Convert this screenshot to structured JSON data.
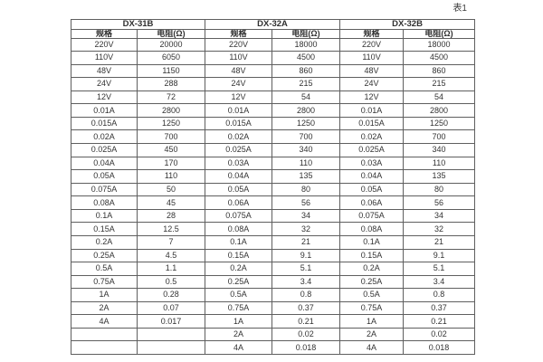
{
  "table_label": "表1",
  "table": {
    "groups": [
      {
        "title": "DX-31B",
        "spec_header": "规格",
        "resistance_header": "电阻(Ω)"
      },
      {
        "title": "DX-32A",
        "spec_header": "规格",
        "resistance_header": "电阻(Ω)"
      },
      {
        "title": "DX-32B",
        "spec_header": "规格",
        "resistance_header": "电阻(Ω)"
      }
    ],
    "rows": [
      {
        "cells": [
          "220V",
          "20000",
          "220V",
          "18000",
          "220V",
          "18000"
        ]
      },
      {
        "cells": [
          "110V",
          "6050",
          "110V",
          "4500",
          "110V",
          "4500"
        ]
      },
      {
        "cells": [
          "48V",
          "1150",
          "48V",
          "860",
          "48V",
          "860"
        ]
      },
      {
        "cells": [
          "24V",
          "288",
          "24V",
          "215",
          "24V",
          "215"
        ]
      },
      {
        "cells": [
          "12V",
          "72",
          "12V",
          "54",
          "12V",
          "54"
        ]
      },
      {
        "cells": [
          "0.01A",
          "2800",
          "0.01A",
          "2800",
          "0.01A",
          "2800"
        ]
      },
      {
        "cells": [
          "0.015A",
          "1250",
          "0.015A",
          "1250",
          "0.015A",
          "1250"
        ]
      },
      {
        "cells": [
          "0.02A",
          "700",
          "0.02A",
          "700",
          "0.02A",
          "700"
        ]
      },
      {
        "cells": [
          "0.025A",
          "450",
          "0.025A",
          "340",
          "0.025A",
          "340"
        ]
      },
      {
        "cells": [
          "0.04A",
          "170",
          "0.03A",
          "110",
          "0.03A",
          "110"
        ]
      },
      {
        "cells": [
          "0.05A",
          "110",
          "0.04A",
          "135",
          "0.04A",
          "135"
        ]
      },
      {
        "cells": [
          "0.075A",
          "50",
          "0.05A",
          "80",
          "0.05A",
          "80"
        ]
      },
      {
        "cells": [
          "0.08A",
          "45",
          "0.06A",
          "56",
          "0.06A",
          "56"
        ]
      },
      {
        "cells": [
          "0.1A",
          "28",
          "0.075A",
          "34",
          "0.075A",
          "34"
        ]
      },
      {
        "cells": [
          "0.15A",
          "12.5",
          "0.08A",
          "32",
          "0.08A",
          "32"
        ]
      },
      {
        "cells": [
          "0.2A",
          "7",
          "0.1A",
          "21",
          "0.1A",
          "21"
        ]
      },
      {
        "cells": [
          "0.25A",
          "4.5",
          "0.15A",
          "9.1",
          "0.15A",
          "9.1"
        ]
      },
      {
        "cells": [
          "0.5A",
          "1.1",
          "0.2A",
          "5.1",
          "0.2A",
          "5.1"
        ]
      },
      {
        "cells": [
          "0.75A",
          "0.5",
          "0.25A",
          "3.4",
          "0.25A",
          "3.4"
        ]
      },
      {
        "cells": [
          "1A",
          "0.28",
          "0.5A",
          "0.8",
          "0.5A",
          "0.8"
        ]
      },
      {
        "cells": [
          "2A",
          "0.07",
          "0.75A",
          "0.37",
          "0.75A",
          "0.37"
        ]
      },
      {
        "cells": [
          "4A",
          "0.017",
          "1A",
          "0.21",
          "1A",
          "0.21"
        ]
      },
      {
        "cells": [
          "",
          "",
          "2A",
          "0.02",
          "2A",
          "0.02"
        ]
      },
      {
        "cells": [
          "",
          "",
          "4A",
          "0.018",
          "4A",
          "0.018"
        ]
      }
    ]
  },
  "colors": {
    "border": "#5f5f5f",
    "text": "#333333",
    "background": "#ffffff"
  }
}
